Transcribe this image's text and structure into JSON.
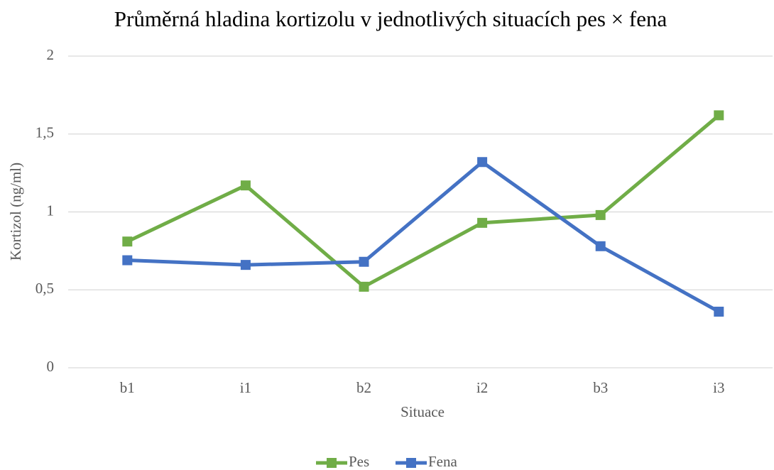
{
  "chart_data": {
    "type": "line",
    "title": "Průměrná hladina kortizolu v jednotlivých situacích pes × fena",
    "x_label": "Situace",
    "y_label": "Kortizol (ng/ml)",
    "categories": [
      "b1",
      "i1",
      "b2",
      "i2",
      "b3",
      "i3"
    ],
    "series": [
      {
        "name": "Pes",
        "color": "#70ad47",
        "values": [
          0.81,
          1.17,
          0.52,
          0.93,
          0.98,
          1.62
        ]
      },
      {
        "name": "Fena",
        "color": "#4472c4",
        "values": [
          0.69,
          0.66,
          0.68,
          1.32,
          0.78,
          0.36
        ]
      }
    ],
    "ylim": [
      0,
      2
    ],
    "yticks": [
      0,
      {
        "value": 0.5,
        "label": "0,5"
      },
      1,
      {
        "value": 1.5,
        "label": "1,5"
      },
      2
    ],
    "grid": true,
    "legend": "bottom"
  }
}
